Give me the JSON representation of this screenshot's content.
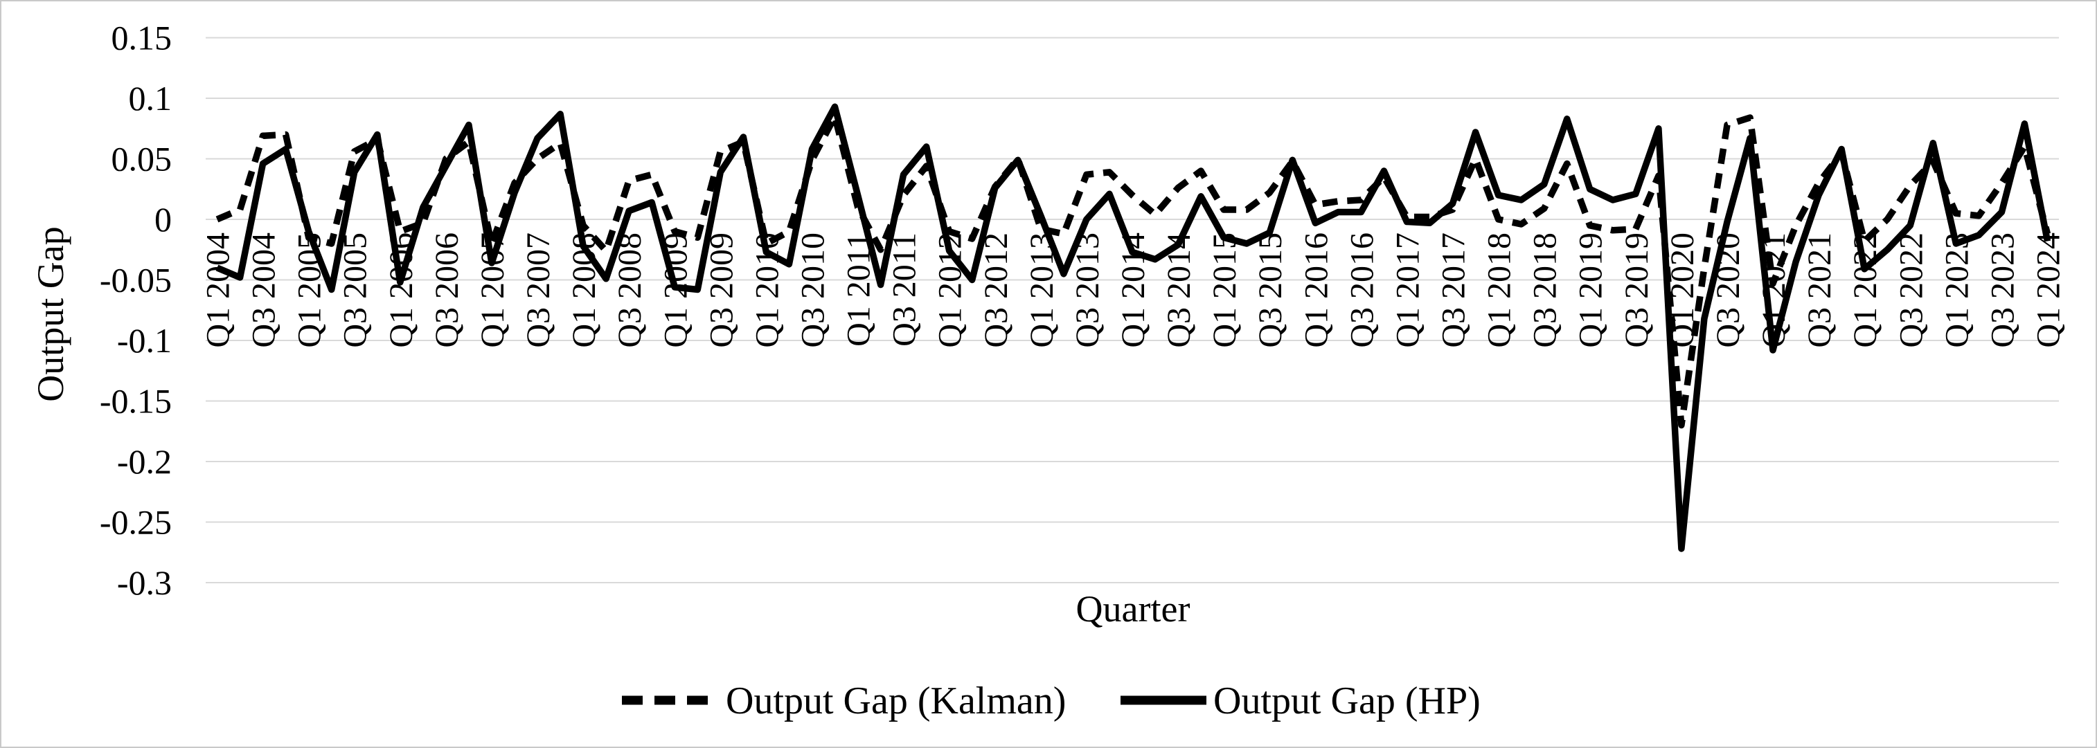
{
  "figure": {
    "background_color": "#ffffff",
    "frame_border_color": "#c9c9c9",
    "grid_color": "#d9d9d9",
    "line_color": "#000000",
    "text_color": "#000000"
  },
  "chart_data": {
    "type": "line",
    "title": "",
    "xlabel": "Quarter",
    "ylabel": "Output Gap",
    "ylim": [
      -0.3,
      0.15
    ],
    "grid": "horizontal",
    "legend_position": "bottom-center",
    "ytick_values": [
      0.15,
      0.1,
      0.05,
      0,
      -0.05,
      -0.1,
      -0.15,
      -0.2,
      -0.25,
      -0.3
    ],
    "ytick_labels": [
      "0.15",
      "0.1",
      "0.05",
      "0",
      "-0.05",
      "-0.1",
      "-0.15",
      "-0.2",
      "-0.25",
      "-0.3"
    ],
    "x_points_total": 81,
    "x_first_point": "Q1 2004",
    "x_last_point": "Q1 2024",
    "xtick_every_n_points": 2,
    "xtick_labels": [
      "Q1 2004",
      "Q3 2004",
      "Q1 2005",
      "Q3 2005",
      "Q1 2006",
      "Q3 2006",
      "Q1 2007",
      "Q3 2007",
      "Q1 2008",
      "Q3 2008",
      "Q1 2009",
      "Q3 2009",
      "Q1 2010",
      "Q3 2010",
      "Q1 2011",
      "Q3 2011",
      "Q1 2012",
      "Q3 2012",
      "Q1 2013",
      "Q3 2013",
      "Q1 2014",
      "Q3 2014",
      "Q1 2015",
      "Q3 2015",
      "Q1 2016",
      "Q3 2016",
      "Q1 2017",
      "Q3 2017",
      "Q1 2018",
      "Q3 2018",
      "Q1 2019",
      "Q3 2019",
      "Q1 2020",
      "Q3 2020",
      "Q1 2021",
      "Q3 2021",
      "Q1 2022",
      "Q3 2022",
      "Q1 2023",
      "Q3 2023",
      "Q1 2024"
    ],
    "series": [
      {
        "name": "Output Gap (Kalman)",
        "style": "dashed",
        "values": [
          0.0,
          0.008,
          0.069,
          0.07,
          -0.015,
          -0.02,
          0.056,
          0.066,
          -0.01,
          -0.003,
          0.05,
          0.064,
          -0.02,
          0.03,
          0.05,
          0.063,
          -0.005,
          -0.026,
          0.032,
          0.037,
          -0.01,
          -0.015,
          0.056,
          0.064,
          -0.02,
          -0.01,
          0.049,
          0.085,
          0.01,
          -0.025,
          0.02,
          0.044,
          -0.01,
          -0.016,
          0.027,
          0.05,
          -0.008,
          -0.012,
          0.037,
          0.039,
          0.02,
          0.004,
          0.026,
          0.04,
          0.008,
          0.008,
          0.022,
          0.048,
          0.012,
          0.015,
          0.016,
          0.035,
          0.002,
          0.002,
          0.008,
          0.05,
          0.0,
          -0.004,
          0.009,
          0.046,
          -0.005,
          -0.009,
          -0.008,
          0.036,
          -0.17,
          -0.04,
          0.078,
          0.084,
          -0.053,
          -0.005,
          0.03,
          0.055,
          -0.018,
          0.0,
          0.028,
          0.048,
          0.005,
          0.003,
          0.03,
          0.06,
          -0.012
        ]
      },
      {
        "name": "Output Gap (HP)",
        "style": "solid",
        "values": [
          -0.04,
          -0.048,
          0.046,
          0.058,
          -0.01,
          -0.058,
          0.039,
          0.07,
          -0.052,
          0.01,
          0.044,
          0.078,
          -0.036,
          0.022,
          0.067,
          0.087,
          -0.022,
          -0.049,
          0.007,
          0.014,
          -0.056,
          -0.058,
          0.039,
          0.068,
          -0.027,
          -0.037,
          0.058,
          0.093,
          0.02,
          -0.054,
          0.037,
          0.06,
          -0.026,
          -0.05,
          0.026,
          0.049,
          0.003,
          -0.045,
          0.0,
          0.021,
          -0.027,
          -0.033,
          -0.021,
          0.019,
          -0.015,
          -0.02,
          -0.011,
          0.049,
          -0.003,
          0.006,
          0.006,
          0.04,
          -0.002,
          -0.003,
          0.013,
          0.072,
          0.02,
          0.016,
          0.029,
          0.083,
          0.025,
          0.016,
          0.021,
          0.075,
          -0.272,
          -0.082,
          -0.002,
          0.067,
          -0.108,
          -0.035,
          0.02,
          0.058,
          -0.041,
          -0.025,
          -0.005,
          0.063,
          -0.02,
          -0.013,
          0.006,
          0.079,
          -0.018
        ]
      }
    ]
  }
}
